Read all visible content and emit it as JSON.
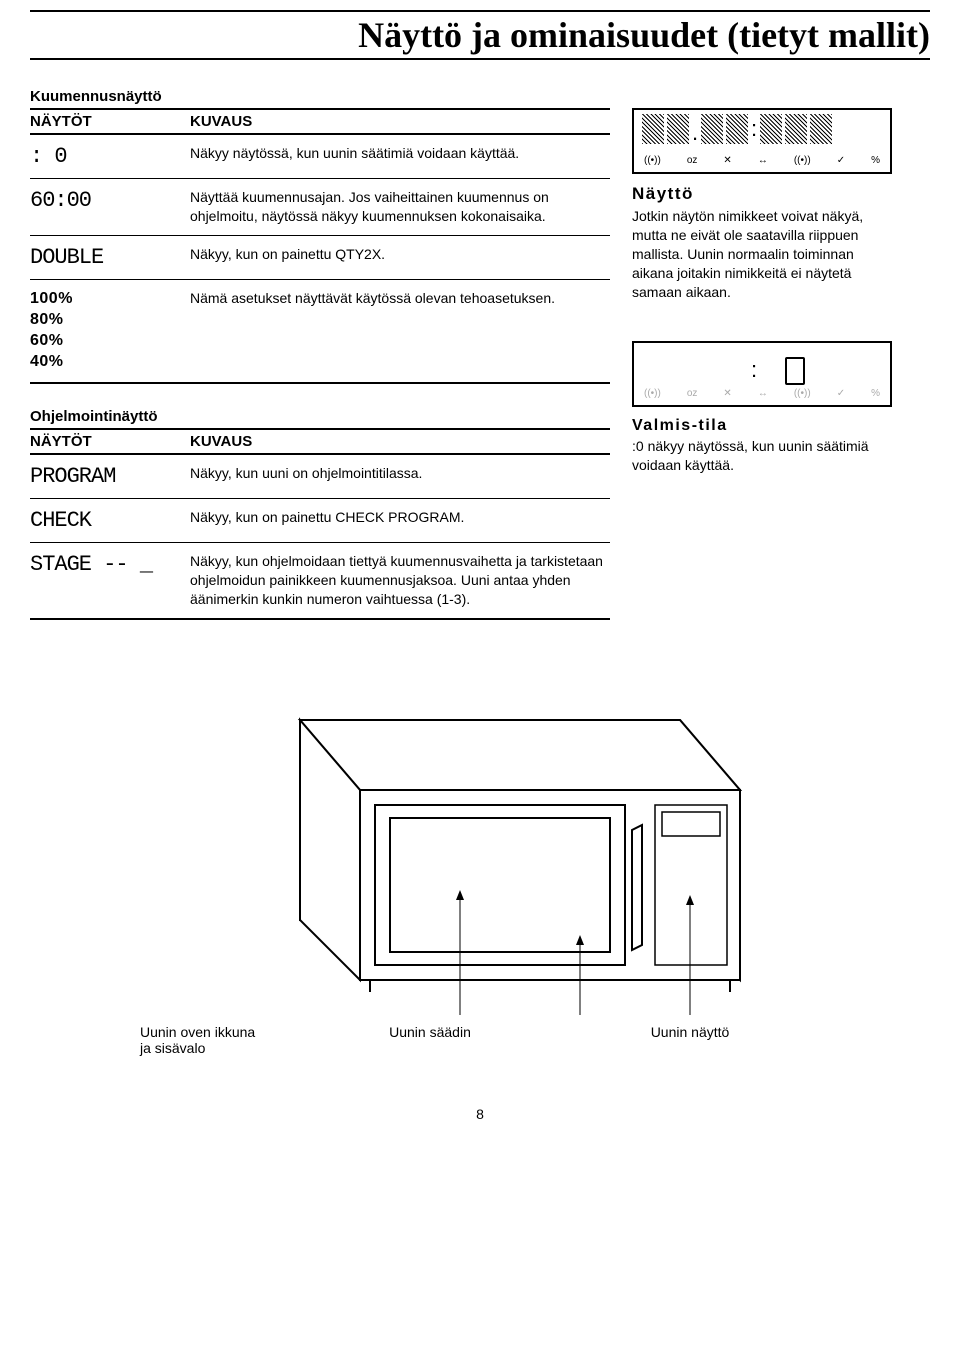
{
  "title": "Näyttö ja ominaisuudet (tietyt mallit)",
  "heating_header": "Kuumennusnäyttö",
  "col_displays": "NÄYTÖT",
  "col_desc": "KUVAUS",
  "heat_rows": [
    {
      "display": ": 0",
      "desc": "Näkyy näytössä, kun uunin säätimiä voidaan käyttää."
    },
    {
      "display": "60:00",
      "desc": "Näyttää kuumennusajan. Jos vaiheittainen kuumennus on ohjelmoitu, näytössä näkyy kuumennuksen kokonaisaika."
    },
    {
      "display": "DOUBLE",
      "desc": "Näkyy, kun on painettu QTY2X."
    },
    {
      "display": "100%\n80%\n60%\n40%",
      "desc": "Nämä asetukset näyttävät käytössä olevan tehoasetuksen."
    }
  ],
  "prog_header": "Ohjelmointinäyttö",
  "prog_rows": [
    {
      "display": "PROGRAM",
      "desc": "Näkyy, kun uuni on ohjelmointitilassa."
    },
    {
      "display": "CHECK",
      "desc": "Näkyy, kun on painettu CHECK PROGRAM."
    },
    {
      "display": "STAGE -- _",
      "desc": "Näkyy, kun ohjelmoidaan tiettyä kuumennusvaihetta ja tarkistetaan ohjelmoidun painikkeen kuumennusjaksoa. Uuni antaa yhden äänimerkin kunkin numeron vaihtuessa (1-3)."
    }
  ],
  "side_display_hdr": "Näyttö",
  "side_display_txt": "Jotkin näytön nimikkeet voivat näkyä, mutta ne eivät ole saatavilla riippuen mallista. Uunin normaalin toiminnan aikana joitakin nimikkeitä ei näytetä samaan aikaan.",
  "standby_hdr": "Valmis-tila",
  "standby_txt": ":0 näkyy näytössä, kun uunin säätimiä voidaan käyttää.",
  "display_icons": [
    "((•))",
    "oz",
    "✕",
    "↔",
    "((•))",
    "✓",
    "%"
  ],
  "callouts": {
    "window": "Uunin oven ikkuna\nja sisävalo",
    "control": "Uunin säädin",
    "disp": "Uunin näyttö"
  },
  "page_num": "8",
  "colors": {
    "ink": "#000000",
    "bg": "#ffffff",
    "grey": "#aaaaaa"
  }
}
